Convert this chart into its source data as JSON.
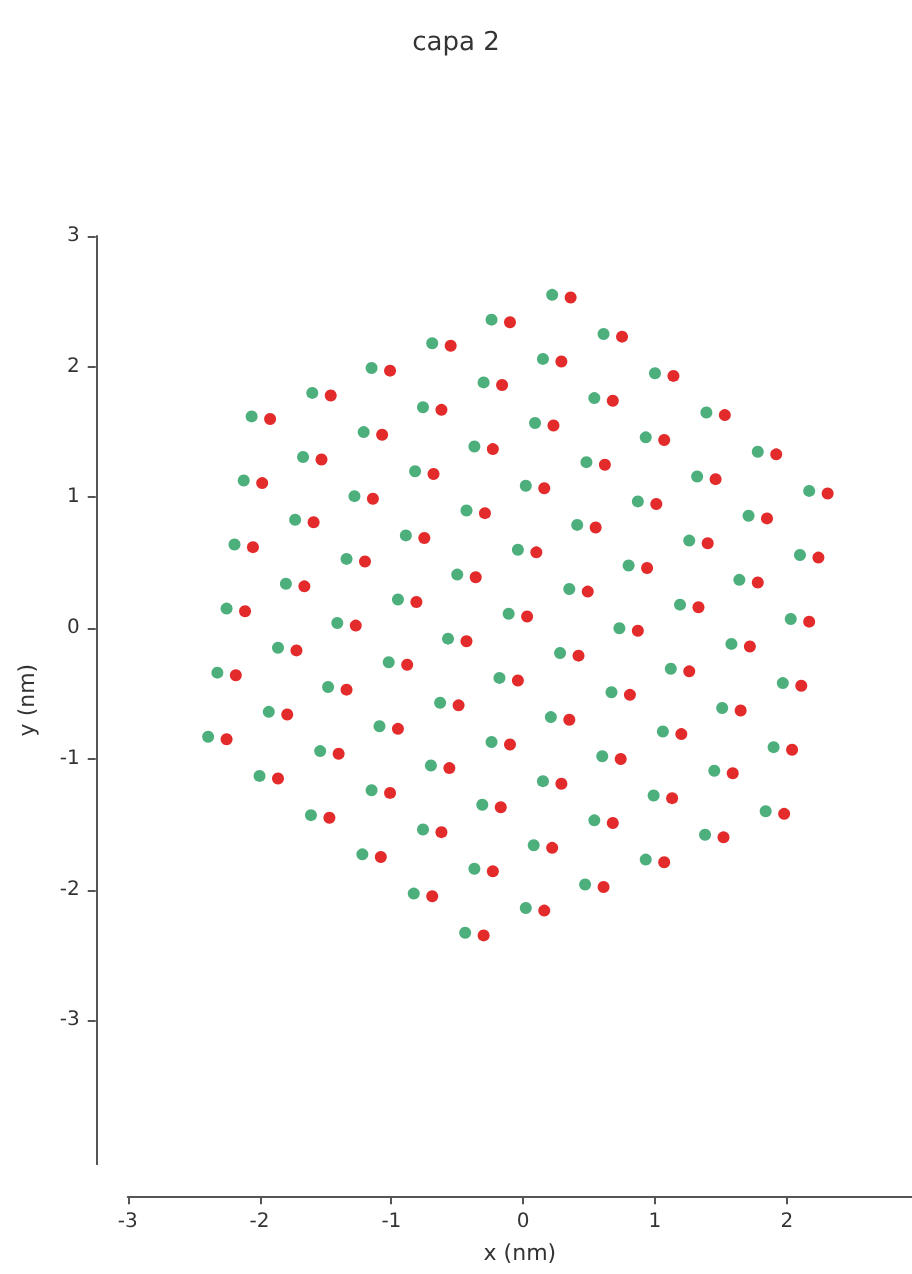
{
  "chart_data": {
    "type": "scatter",
    "title": "capa 2",
    "xlabel": "x (nm)",
    "ylabel": "y (nm)",
    "xlim": [
      -3,
      2.95
    ],
    "ylim": [
      -4.1,
      3
    ],
    "xticks": [
      -3,
      -2,
      -1,
      0,
      1,
      2
    ],
    "yticks": [
      -3,
      -2,
      -1,
      0,
      1,
      2,
      3
    ],
    "grid": false,
    "marker": "circle",
    "series": [
      {
        "color": "#e32b2b",
        "x": [
          0.36,
          0.75,
          1.14,
          1.53,
          1.92,
          2.31,
          -0.1,
          0.29,
          0.68,
          1.07,
          1.46,
          1.85,
          2.24,
          -0.55,
          -0.16,
          0.23,
          0.62,
          1.01,
          1.4,
          1.78,
          2.17,
          -1.01,
          -0.62,
          -0.23,
          0.16,
          0.55,
          0.94,
          1.33,
          1.72,
          2.11,
          -1.46,
          -1.07,
          -0.68,
          -0.29,
          0.1,
          0.49,
          0.87,
          1.26,
          1.65,
          2.04,
          -1.92,
          -1.53,
          -1.14,
          -0.75,
          -0.36,
          0.03,
          0.42,
          0.81,
          1.2,
          1.59,
          1.98,
          -1.98,
          -1.59,
          -1.2,
          -0.81,
          -0.43,
          -0.04,
          0.35,
          0.74,
          1.13,
          1.52,
          -2.05,
          -1.66,
          -1.27,
          -0.88,
          -0.49,
          -0.1,
          0.29,
          0.68,
          1.07,
          -2.11,
          -1.72,
          -1.34,
          -0.95,
          -0.56,
          -0.17,
          0.22,
          0.61,
          -2.18,
          -1.79,
          -1.4,
          -1.01,
          -0.62,
          -0.23,
          0.16,
          -2.25,
          -1.86,
          -1.47,
          -1.08,
          -0.69,
          -0.3
        ],
        "values": [
          2.53,
          2.23,
          1.93,
          1.63,
          1.33,
          1.03,
          2.34,
          2.04,
          1.74,
          1.44,
          1.14,
          0.84,
          0.54,
          2.16,
          1.86,
          1.55,
          1.25,
          0.95,
          0.65,
          0.35,
          0.05,
          1.97,
          1.67,
          1.37,
          1.07,
          0.77,
          0.46,
          0.16,
          -0.14,
          -0.44,
          1.78,
          1.48,
          1.18,
          0.88,
          0.58,
          0.28,
          -0.02,
          -0.33,
          -0.63,
          -0.93,
          1.6,
          1.29,
          0.99,
          0.69,
          0.39,
          0.09,
          -0.21,
          -0.51,
          -0.81,
          -1.11,
          -1.42,
          1.11,
          0.81,
          0.51,
          0.2,
          -0.1,
          -0.4,
          -0.7,
          -1.0,
          -1.3,
          -1.6,
          0.62,
          0.32,
          0.02,
          -0.28,
          -0.59,
          -0.89,
          -1.19,
          -1.49,
          -1.79,
          0.13,
          -0.17,
          -0.47,
          -0.77,
          -1.07,
          -1.37,
          -1.68,
          -1.98,
          -0.36,
          -0.66,
          -0.96,
          -1.26,
          -1.56,
          -1.86,
          -2.16,
          -0.85,
          -1.15,
          -1.45,
          -1.75,
          -2.05,
          -2.35
        ]
      },
      {
        "color": "#4daf7c",
        "x": [
          0.22,
          0.61,
          1.0,
          1.39,
          1.78,
          2.17,
          -0.24,
          0.15,
          0.54,
          0.93,
          1.32,
          1.71,
          2.1,
          -0.69,
          -0.3,
          0.09,
          0.48,
          0.87,
          1.26,
          1.64,
          2.03,
          -1.15,
          -0.76,
          -0.37,
          0.02,
          0.41,
          0.8,
          1.19,
          1.58,
          1.97,
          -1.6,
          -1.21,
          -0.82,
          -0.43,
          -0.04,
          0.35,
          0.73,
          1.12,
          1.51,
          1.9,
          -2.06,
          -1.67,
          -1.28,
          -0.89,
          -0.5,
          -0.11,
          0.28,
          0.67,
          1.06,
          1.45,
          1.84,
          -2.12,
          -1.73,
          -1.34,
          -0.95,
          -0.57,
          -0.18,
          0.21,
          0.6,
          0.99,
          1.38,
          -2.19,
          -1.8,
          -1.41,
          -1.02,
          -0.63,
          -0.24,
          0.15,
          0.54,
          0.93,
          -2.25,
          -1.86,
          -1.48,
          -1.09,
          -0.7,
          -0.31,
          0.08,
          0.47,
          -2.32,
          -1.93,
          -1.54,
          -1.15,
          -0.76,
          -0.37,
          0.02,
          -2.39,
          -2.0,
          -1.61,
          -1.22,
          -0.83,
          -0.44
        ],
        "values": [
          2.55,
          2.25,
          1.95,
          1.65,
          1.35,
          1.05,
          2.36,
          2.06,
          1.76,
          1.46,
          1.16,
          0.86,
          0.56,
          2.18,
          1.88,
          1.57,
          1.27,
          0.97,
          0.67,
          0.37,
          0.07,
          1.99,
          1.69,
          1.39,
          1.09,
          0.79,
          0.48,
          0.18,
          -0.12,
          -0.42,
          1.8,
          1.5,
          1.2,
          0.9,
          0.6,
          0.3,
          0.0,
          -0.31,
          -0.61,
          -0.91,
          1.62,
          1.31,
          1.01,
          0.71,
          0.41,
          0.11,
          -0.19,
          -0.49,
          -0.79,
          -1.09,
          -1.4,
          1.13,
          0.83,
          0.53,
          0.22,
          -0.08,
          -0.38,
          -0.68,
          -0.98,
          -1.28,
          -1.58,
          0.64,
          0.34,
          0.04,
          -0.26,
          -0.57,
          -0.87,
          -1.17,
          -1.47,
          -1.77,
          0.15,
          -0.15,
          -0.45,
          -0.75,
          -1.05,
          -1.35,
          -1.66,
          -1.96,
          -0.34,
          -0.64,
          -0.94,
          -1.24,
          -1.54,
          -1.84,
          -2.14,
          -0.83,
          -1.13,
          -1.43,
          -1.73,
          -2.03,
          -2.33
        ]
      }
    ]
  }
}
